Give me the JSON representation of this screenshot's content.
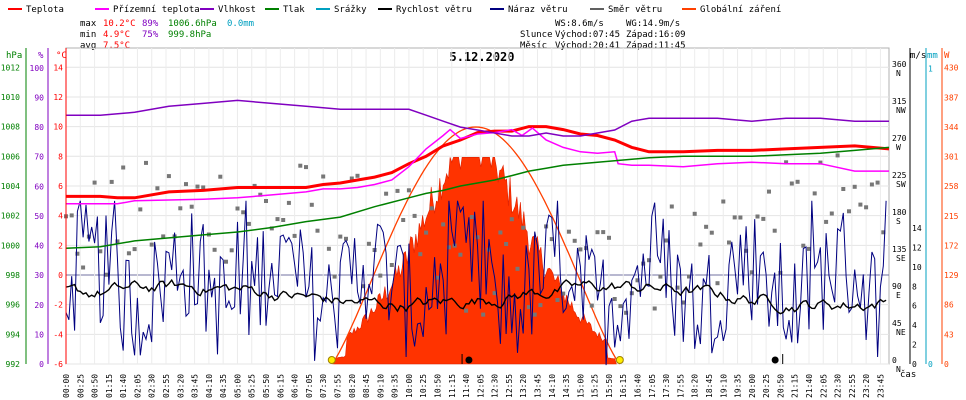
{
  "legend": [
    {
      "label": "Teplota",
      "color": "#ff0000"
    },
    {
      "label": "Přízemní teplota",
      "color": "#ff00ff"
    },
    {
      "label": "Vlhkost",
      "color": "#8000c0"
    },
    {
      "label": "Tlak",
      "color": "#008000"
    },
    {
      "label": "Srážky",
      "color": "#00a0c0"
    },
    {
      "label": "Rychlost větru",
      "color": "#000000"
    },
    {
      "label": "Náraz větru",
      "color": "#000080"
    },
    {
      "label": "Směr větru",
      "color": "#606060"
    },
    {
      "label": "Globální záření",
      "color": "#ff4000"
    }
  ],
  "stats": {
    "max": {
      "label": "max",
      "temp": "10.2°C",
      "hum": "89%",
      "press": "1006.6hPa",
      "rain": "0.0mm"
    },
    "min": {
      "label": "min",
      "temp": "4.9°C",
      "hum": "75%",
      "press": "999.8hPa"
    },
    "avg": {
      "label": "avg",
      "temp": "7.5°C"
    }
  },
  "wind_info": {
    "ws": "WS:8.6m/s",
    "wg": "WG:14.9m/s"
  },
  "sun_info": {
    "label": "Slunce",
    "rise": "Východ:07:45",
    "set": "Západ:16:09"
  },
  "moon_info": {
    "label": "Měsíc",
    "rise": "Východ:20:41",
    "set": "Západ:11:45"
  },
  "axes_units": {
    "hpa": "hPa",
    "pct": "%",
    "degc": "°C",
    "ms": "m/s",
    "mm": "mm",
    "w": "W",
    "time": "čas"
  },
  "chart_data": {
    "type": "line",
    "title": "5.12.2020",
    "xlabel": "čas",
    "time_ticks": [
      "00:00",
      "00:25",
      "00:50",
      "01:15",
      "01:40",
      "02:05",
      "02:30",
      "02:55",
      "03:20",
      "03:45",
      "04:10",
      "04:35",
      "05:00",
      "05:25",
      "05:50",
      "06:15",
      "06:40",
      "07:05",
      "07:30",
      "07:55",
      "08:20",
      "08:45",
      "09:10",
      "09:35",
      "10:00",
      "10:25",
      "10:50",
      "11:15",
      "11:40",
      "12:05",
      "12:30",
      "12:55",
      "13:20",
      "13:45",
      "14:10",
      "14:35",
      "15:00",
      "15:25",
      "15:50",
      "16:15",
      "16:40",
      "17:05",
      "17:30",
      "17:55",
      "18:20",
      "18:45",
      "19:10",
      "19:35",
      "20:00",
      "20:25",
      "20:50",
      "21:15",
      "21:40",
      "22:05",
      "22:30",
      "22:55",
      "23:20",
      "23:45"
    ],
    "axis_hpa": {
      "ticks": [
        992,
        994,
        996,
        998,
        1000,
        1002,
        1004,
        1006,
        1008,
        1010,
        1012
      ],
      "range": [
        992,
        1013.3
      ]
    },
    "axis_pct": {
      "ticks": [
        0,
        10,
        20,
        30,
        40,
        50,
        60,
        70,
        80,
        90,
        100
      ],
      "range": [
        0,
        106.7
      ]
    },
    "axis_temp": {
      "ticks": [
        -6,
        -4,
        -2,
        0,
        2,
        4,
        6,
        8,
        10,
        12,
        14
      ],
      "range": [
        -6,
        15.3
      ]
    },
    "axis_dir": {
      "ticks": [
        0,
        45,
        90,
        135,
        180,
        225,
        270,
        315,
        360
      ],
      "labels": [
        "N",
        "NE",
        "E",
        "SE",
        "S",
        "SW",
        "W",
        "NW",
        "N"
      ],
      "range": [
        0,
        384
      ]
    },
    "axis_ms": {
      "ticks": [
        0,
        2,
        4,
        6,
        8,
        10,
        12,
        14
      ]
    },
    "axis_mm": {
      "ticks": [
        0,
        1
      ],
      "range": [
        0,
        1.07
      ]
    },
    "axis_w": {
      "ticks": [
        0,
        43,
        86,
        129,
        172,
        215,
        258,
        301,
        344,
        387,
        430
      ],
      "range": [
        0,
        458.6
      ]
    },
    "series": [
      {
        "name": "Teplota",
        "axis": "temp",
        "color": "#ff0000",
        "x": [
          0,
          1,
          1.5,
          2,
          3,
          4,
          5,
          6,
          6.5,
          7,
          7.5,
          8,
          8.5,
          9,
          9.5,
          10,
          10.5,
          11,
          11.5,
          12,
          12.5,
          13,
          13.5,
          14,
          14.5,
          15,
          15.5,
          16,
          16.5,
          17,
          18,
          19,
          20,
          21,
          22,
          23,
          24
        ],
        "y": [
          5.3,
          5.3,
          5.2,
          5.2,
          5.6,
          5.7,
          5.9,
          5.9,
          5.9,
          5.9,
          6.1,
          6.2,
          6.4,
          6.6,
          6.9,
          7.5,
          8,
          8.7,
          9.1,
          9.6,
          9.7,
          9.7,
          10,
          10,
          9.8,
          9.5,
          9.4,
          9.1,
          8.6,
          8.3,
          8.3,
          8.4,
          8.4,
          8.5,
          8.6,
          8.7,
          8.5
        ]
      },
      {
        "name": "Přízemní teplota",
        "axis": "temp",
        "color": "#ff00ff",
        "x": [
          0,
          1.5,
          2,
          4,
          5,
          6,
          7,
          7.5,
          8,
          8.5,
          9,
          9.5,
          10,
          10.5,
          11,
          11.2,
          11.5,
          12,
          12.5,
          13,
          13.3,
          13.6,
          14,
          14.5,
          15,
          15.5,
          16,
          16.1,
          16.5,
          17,
          18,
          19,
          20,
          21,
          22,
          23,
          24
        ],
        "y": [
          4.8,
          4.8,
          5,
          5.1,
          5.2,
          5.4,
          5.6,
          5.8,
          5.8,
          5.9,
          6.1,
          6.4,
          7.3,
          8.5,
          9.4,
          9.8,
          9.2,
          9.5,
          9.6,
          9.8,
          9.4,
          9.9,
          9.1,
          8.6,
          8.3,
          8.2,
          8.3,
          7.5,
          7.4,
          7.4,
          7.3,
          7.5,
          7.6,
          7.5,
          7.5,
          7.0,
          7.0
        ]
      },
      {
        "name": "Vlhkost",
        "axis": "pct",
        "color": "#8000c0",
        "x": [
          0,
          1,
          2,
          3,
          4,
          5,
          6,
          7,
          8,
          9,
          10,
          10.5,
          11,
          11.5,
          12,
          12.5,
          13,
          13.5,
          14,
          14.5,
          15,
          15.5,
          16,
          16.5,
          17,
          18,
          19,
          20,
          21,
          22,
          23,
          24
        ],
        "y": [
          84,
          84,
          85,
          87,
          88,
          89,
          88,
          87,
          86,
          86,
          86,
          84,
          82,
          80,
          79,
          78,
          77,
          77,
          78,
          77,
          77,
          78,
          79,
          82,
          83,
          83,
          83,
          82,
          83,
          83,
          82,
          82
        ]
      },
      {
        "name": "Tlak",
        "axis": "hpa",
        "color": "#008000",
        "x": [
          0,
          1,
          2,
          3,
          4,
          5,
          6,
          7,
          8,
          9,
          10,
          10.5,
          11,
          11.5,
          12,
          12.5,
          13,
          13.5,
          14,
          14.5,
          15,
          15.5,
          16,
          16.5,
          17,
          18,
          19,
          20,
          21,
          22,
          23,
          24
        ],
        "y": [
          999.8,
          999.9,
          1000.3,
          1000.5,
          1000.7,
          1000.9,
          1001.2,
          1001.6,
          1001.9,
          1002.6,
          1003.2,
          1003.5,
          1003.7,
          1004,
          1004.2,
          1004.4,
          1004.7,
          1005,
          1005.2,
          1005.4,
          1005.5,
          1005.6,
          1005.7,
          1005.8,
          1005.9,
          1006,
          1006,
          1006,
          1006.1,
          1006.2,
          1006.4,
          1006.6
        ]
      },
      {
        "name": "Rychlost větru",
        "axis": "ms",
        "color": "#000000",
        "values": "generated"
      },
      {
        "name": "Náraz větru",
        "axis": "ms",
        "color": "#000080",
        "values": "generated"
      },
      {
        "name": "Směr větru",
        "axis": "dir",
        "color": "#606060",
        "values": "generated"
      },
      {
        "name": "Globální záření",
        "axis": "w",
        "color": "#ff4000",
        "values": "generated"
      }
    ]
  }
}
